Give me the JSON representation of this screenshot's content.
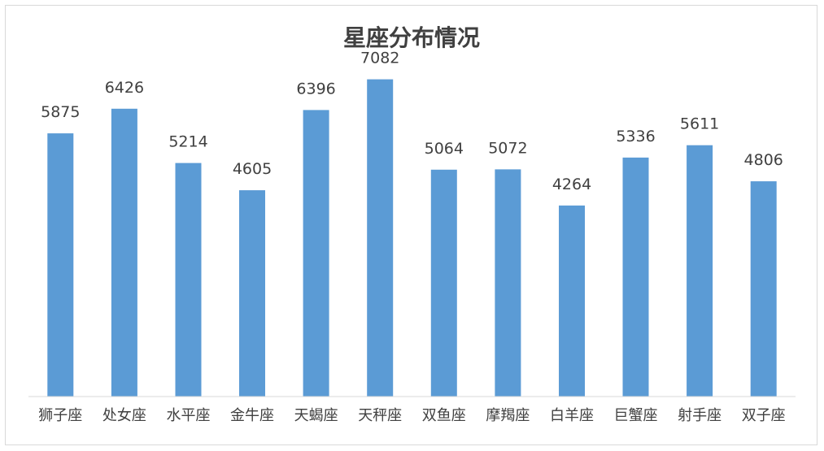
{
  "chart_data": {
    "type": "bar",
    "title": "星座分布情况",
    "categories": [
      "狮子座",
      "处女座",
      "水平座",
      "金牛座",
      "天蝎座",
      "天秤座",
      "双鱼座",
      "摩羯座",
      "白羊座",
      "巨蟹座",
      "射手座",
      "双子座"
    ],
    "values": [
      5875,
      6426,
      5214,
      4605,
      6396,
      7082,
      5064,
      5072,
      4264,
      5336,
      5611,
      4806
    ],
    "ylim": [
      0,
      8000
    ],
    "grid": false,
    "legend": "none",
    "y_axis_visible": false,
    "data_labels": true,
    "bar_color": "#5b9bd5"
  }
}
